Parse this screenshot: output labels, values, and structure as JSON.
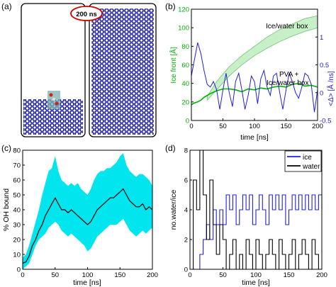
{
  "panels": {
    "a": {
      "label": "(a)",
      "badge": "200 ns"
    },
    "b": {
      "label": "(b)",
      "xlabel": "time [ns]",
      "ylabel_left": "Ice front [Å]",
      "ylabel_right": "<Δ> [Å /ns]",
      "xticks": [
        "0",
        "50",
        "100",
        "150",
        "200"
      ],
      "yticks_left": [
        "0",
        "20",
        "40",
        "60",
        "80",
        "100",
        "120"
      ],
      "yticks_right": [
        "-0.5",
        "0",
        "0.5",
        "1"
      ],
      "annotations": [
        "Ice/water box",
        "PVA +",
        "Ice/water box"
      ]
    },
    "c": {
      "label": "(c)",
      "xlabel": "time [ns]",
      "ylabel": "% OH bound",
      "xticks": [
        "0",
        "50",
        "100",
        "150",
        "200"
      ],
      "yticks": [
        "0",
        "10",
        "20",
        "30",
        "40",
        "50",
        "60",
        "70",
        "80"
      ]
    },
    "d": {
      "label": "(d)",
      "xlabel": "time [ns]",
      "ylabel": "no.water/ice",
      "xticks": [
        "0",
        "50",
        "100",
        "150",
        "200"
      ],
      "yticks": [
        "0",
        "2",
        "4",
        "6",
        "8"
      ],
      "legend": [
        "ice",
        "water"
      ]
    }
  },
  "colors": {
    "ice_lattice": "#1a1aa0",
    "green": "#00b000",
    "band_green": "#c8f0c8",
    "blue": "#2020e0",
    "cyan": "#00e5ee",
    "black": "#000000",
    "badge_ring": "#d00000"
  },
  "chart_data": [
    {
      "panel": "b",
      "type": "line",
      "xlim": [
        0,
        200
      ],
      "ylim_left": [
        0,
        120
      ],
      "ylim_right": [
        -0.5,
        1.5
      ],
      "grid": false,
      "series": [
        {
          "axis": "left",
          "style": "band",
          "x": [
            25,
            40,
            60,
            80,
            100,
            120,
            140,
            160,
            180,
            200
          ],
          "lower": [
            22,
            33,
            48,
            60,
            70,
            78,
            85,
            91,
            96,
            100
          ],
          "upper": [
            26,
            42,
            58,
            70,
            80,
            90,
            98,
            104,
            110,
            113
          ]
        },
        {
          "axis": "left",
          "style": "line",
          "x": [
            0,
            5,
            10,
            15,
            20,
            25,
            30,
            40,
            50,
            60,
            70,
            80,
            90,
            100,
            110,
            120,
            130,
            140,
            150,
            160,
            170,
            180,
            190,
            200
          ],
          "y": [
            17,
            19,
            20,
            22,
            25,
            27,
            29,
            32,
            34,
            34,
            33,
            31,
            34,
            33,
            35,
            34,
            36,
            37,
            36,
            39,
            40,
            37,
            38,
            36
          ]
        },
        {
          "axis": "right",
          "style": "line",
          "x": [
            0,
            5,
            10,
            15,
            20,
            25,
            30,
            35,
            40,
            45,
            50,
            55,
            60,
            65,
            70,
            75,
            80,
            85,
            90,
            95,
            100,
            105,
            110,
            115,
            120,
            125,
            130,
            135,
            140,
            145,
            150,
            155,
            160,
            165,
            170,
            175,
            180,
            185,
            190,
            195,
            200
          ],
          "y": [
            0.3,
            0.6,
            0.9,
            0.7,
            0.4,
            0.15,
            0.1,
            0.2,
            0.05,
            -0.3,
            0.05,
            0.35,
            0.0,
            -0.25,
            0.2,
            0.35,
            0.05,
            -0.3,
            -0.05,
            0.3,
            0.2,
            -0.2,
            0.25,
            0.4,
            0.1,
            -0.05,
            0.3,
            0.35,
            0.0,
            -0.3,
            0.05,
            0.35,
            0.2,
            0.0,
            -0.1,
            0.1,
            0.35,
            0.3,
            0.15,
            -0.35,
            0.05
          ]
        }
      ]
    },
    {
      "panel": "c",
      "type": "line",
      "xlim": [
        0,
        200
      ],
      "ylim": [
        0,
        80
      ],
      "grid": false,
      "series": [
        {
          "style": "band",
          "x": [
            0,
            5,
            10,
            15,
            20,
            25,
            30,
            35,
            40,
            45,
            50,
            55,
            60,
            65,
            70,
            75,
            80,
            85,
            90,
            95,
            100,
            105,
            110,
            115,
            120,
            125,
            130,
            135,
            140,
            145,
            150,
            155,
            160,
            165,
            170,
            175,
            180,
            185,
            190,
            195,
            200
          ],
          "lower": [
            0,
            2,
            4,
            10,
            16,
            20,
            22,
            24,
            28,
            30,
            32,
            30,
            26,
            24,
            22,
            24,
            22,
            20,
            18,
            16,
            12,
            14,
            18,
            22,
            24,
            26,
            28,
            30,
            30,
            30,
            32,
            34,
            30,
            26,
            24,
            22,
            24,
            26,
            24,
            26,
            28
          ],
          "upper": [
            8,
            10,
            16,
            24,
            32,
            40,
            50,
            58,
            66,
            68,
            76,
            66,
            60,
            58,
            56,
            58,
            56,
            58,
            54,
            52,
            50,
            54,
            60,
            64,
            66,
            66,
            68,
            68,
            70,
            72,
            76,
            78,
            70,
            66,
            64,
            62,
            64,
            64,
            62,
            60,
            56
          ]
        },
        {
          "style": "line",
          "x": [
            0,
            5,
            10,
            15,
            20,
            25,
            30,
            35,
            40,
            45,
            50,
            55,
            60,
            65,
            70,
            75,
            80,
            85,
            90,
            95,
            100,
            105,
            110,
            115,
            120,
            125,
            130,
            135,
            140,
            145,
            150,
            155,
            160,
            165,
            170,
            175,
            180,
            185,
            190,
            195,
            200
          ],
          "y": [
            4,
            5,
            9,
            16,
            20,
            26,
            30,
            36,
            40,
            44,
            48,
            44,
            40,
            40,
            38,
            40,
            38,
            36,
            34,
            32,
            30,
            32,
            36,
            40,
            42,
            44,
            46,
            48,
            48,
            50,
            52,
            54,
            50,
            46,
            44,
            42,
            42,
            44,
            40,
            42,
            40
          ]
        }
      ]
    },
    {
      "panel": "d",
      "type": "line",
      "xlim": [
        0,
        200
      ],
      "ylim": [
        0,
        8
      ],
      "legend_position": "top-right",
      "grid": false,
      "series": [
        {
          "name": "ice",
          "x": [
            0,
            5,
            10,
            15,
            20,
            25,
            30,
            35,
            40,
            45,
            50,
            55,
            60,
            65,
            70,
            75,
            80,
            85,
            90,
            95,
            100,
            105,
            110,
            115,
            120,
            125,
            130,
            135,
            140,
            145,
            150,
            155,
            160,
            165,
            170,
            175,
            180,
            185,
            190,
            195,
            200
          ],
          "y": [
            0,
            0,
            0,
            1,
            2,
            3,
            2,
            4,
            3,
            4,
            3,
            5,
            4,
            5,
            3,
            4,
            5,
            4,
            5,
            3,
            4,
            5,
            4,
            3,
            5,
            4,
            5,
            4,
            5,
            3,
            4,
            5,
            4,
            5,
            4,
            5,
            4,
            5,
            4,
            5,
            4
          ]
        },
        {
          "name": "water",
          "x": [
            0,
            5,
            10,
            15,
            20,
            25,
            30,
            35,
            40,
            45,
            50,
            55,
            60,
            65,
            70,
            75,
            80,
            85,
            90,
            95,
            100,
            105,
            110,
            115,
            120,
            125,
            130,
            135,
            140,
            145,
            150,
            155,
            160,
            165,
            170,
            175,
            180,
            185,
            190,
            195,
            200
          ],
          "y": [
            0,
            6,
            4,
            8,
            5,
            2,
            6,
            3,
            1,
            3,
            2,
            0,
            1,
            2,
            0,
            1,
            0,
            2,
            1,
            0,
            2,
            1,
            0,
            1,
            2,
            1,
            0,
            2,
            1,
            0,
            1,
            2,
            0,
            1,
            2,
            1,
            0,
            2,
            1,
            0,
            0
          ]
        }
      ]
    }
  ]
}
